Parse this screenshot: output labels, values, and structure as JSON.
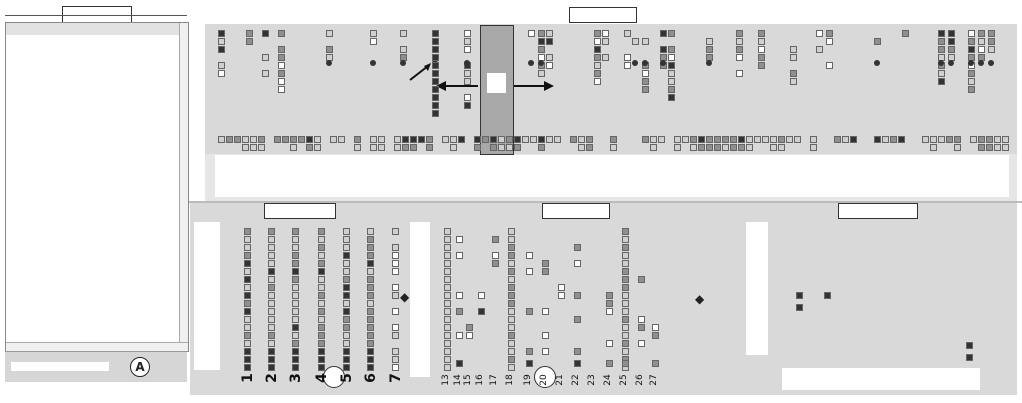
{
  "left": {
    "marker": "A"
  },
  "top": {
    "arrow_left": "←",
    "arrow_right": "→"
  },
  "bottom": {
    "columns_a": [
      "1",
      "2",
      "3",
      "4",
      "5",
      "6",
      "7"
    ],
    "columns_b": [
      "13",
      "14",
      "15",
      "16",
      "17",
      "18",
      "19",
      "20",
      "21",
      "22",
      "23",
      "24",
      "25",
      "26",
      "27"
    ],
    "arrow_glyph": "◆"
  },
  "colors": {
    "panel_bg": "#d9d9d9",
    "highlight": "#a8a8a8",
    "cell_dark": "#333333",
    "cell_mid": "#8f8f8f",
    "cell_light": "#cfcfcf"
  }
}
